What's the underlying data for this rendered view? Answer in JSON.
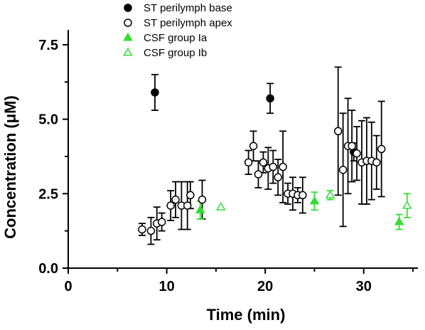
{
  "chart_data": {
    "type": "scatter",
    "xlabel": "Time (min)",
    "ylabel": "Concentration (μM)",
    "xlim": [
      0,
      35.5
    ],
    "ylim": [
      0,
      8.0
    ],
    "xticks": [
      0,
      10,
      20,
      30
    ],
    "yticks": [
      0.0,
      2.5,
      5.0,
      7.5
    ],
    "xtick_labels": [
      "0",
      "10",
      "20",
      "30"
    ],
    "ytick_labels": [
      "0.0",
      "2.5",
      "5.0",
      "7.5"
    ],
    "grid": false,
    "legend_placement": "top-center",
    "series": [
      {
        "name": "ST perilymph base",
        "marker": "filled-circle",
        "color": "#000000",
        "points": [
          {
            "x": 8.8,
            "y": 5.9,
            "err": 0.6
          },
          {
            "x": 20.5,
            "y": 5.7,
            "err": 0.5
          },
          {
            "x": 29.0,
            "y": 3.9,
            "err": 0.3
          }
        ]
      },
      {
        "name": "ST perilymph apex",
        "marker": "open-circle",
        "color": "#000000",
        "points": [
          {
            "x": 7.5,
            "y": 1.3,
            "err": 0.2
          },
          {
            "x": 8.4,
            "y": 1.25,
            "err": 0.45
          },
          {
            "x": 9.0,
            "y": 1.5,
            "err": 0.55
          },
          {
            "x": 9.5,
            "y": 1.55,
            "err": 0.3
          },
          {
            "x": 10.4,
            "y": 2.1,
            "err": 0.5
          },
          {
            "x": 10.9,
            "y": 2.3,
            "err": 0.6
          },
          {
            "x": 11.5,
            "y": 2.1,
            "err": 0.8
          },
          {
            "x": 12.1,
            "y": 2.1,
            "err": 0.8
          },
          {
            "x": 12.4,
            "y": 2.45,
            "err": 0.45
          },
          {
            "x": 13.6,
            "y": 2.3,
            "err": 0.65
          },
          {
            "x": 18.3,
            "y": 3.55,
            "err": 0.4
          },
          {
            "x": 18.8,
            "y": 4.1,
            "err": 0.5
          },
          {
            "x": 19.3,
            "y": 3.15,
            "err": 0.45
          },
          {
            "x": 19.8,
            "y": 3.55,
            "err": 0.35
          },
          {
            "x": 20.3,
            "y": 3.35,
            "err": 0.7
          },
          {
            "x": 20.8,
            "y": 3.4,
            "err": 0.55
          },
          {
            "x": 21.3,
            "y": 3.05,
            "err": 0.6
          },
          {
            "x": 21.8,
            "y": 3.4,
            "err": 1.2
          },
          {
            "x": 22.3,
            "y": 2.5,
            "err": 0.35
          },
          {
            "x": 22.8,
            "y": 2.5,
            "err": 0.55
          },
          {
            "x": 23.3,
            "y": 2.45,
            "err": 0.25
          },
          {
            "x": 23.8,
            "y": 2.45,
            "err": 0.6
          },
          {
            "x": 27.4,
            "y": 4.6,
            "err": 2.15
          },
          {
            "x": 27.9,
            "y": 3.3,
            "err": 1.9
          },
          {
            "x": 28.4,
            "y": 4.1,
            "err": 1.6
          },
          {
            "x": 28.8,
            "y": 4.1,
            "err": 1.2
          },
          {
            "x": 29.3,
            "y": 3.85,
            "err": 0.9
          },
          {
            "x": 29.8,
            "y": 3.55,
            "err": 1.4
          },
          {
            "x": 30.3,
            "y": 3.6,
            "err": 1.45
          },
          {
            "x": 30.8,
            "y": 3.6,
            "err": 1.3
          },
          {
            "x": 31.3,
            "y": 3.55,
            "err": 0.9
          },
          {
            "x": 31.8,
            "y": 4.0,
            "err": 1.6
          }
        ]
      },
      {
        "name": "CSF group Ia",
        "marker": "filled-triangle",
        "color": "#33dd33",
        "points": [
          {
            "x": 13.4,
            "y": 1.95,
            "err": 0.3
          },
          {
            "x": 25.0,
            "y": 2.25,
            "err": 0.3
          },
          {
            "x": 33.6,
            "y": 1.55,
            "err": 0.25
          }
        ]
      },
      {
        "name": "CSF group Ib",
        "marker": "open-triangle",
        "color": "#33dd33",
        "points": [
          {
            "x": 15.5,
            "y": 2.05,
            "err": 0.0
          },
          {
            "x": 26.6,
            "y": 2.45,
            "err": 0.15
          },
          {
            "x": 34.4,
            "y": 2.1,
            "err": 0.4
          }
        ]
      }
    ]
  }
}
